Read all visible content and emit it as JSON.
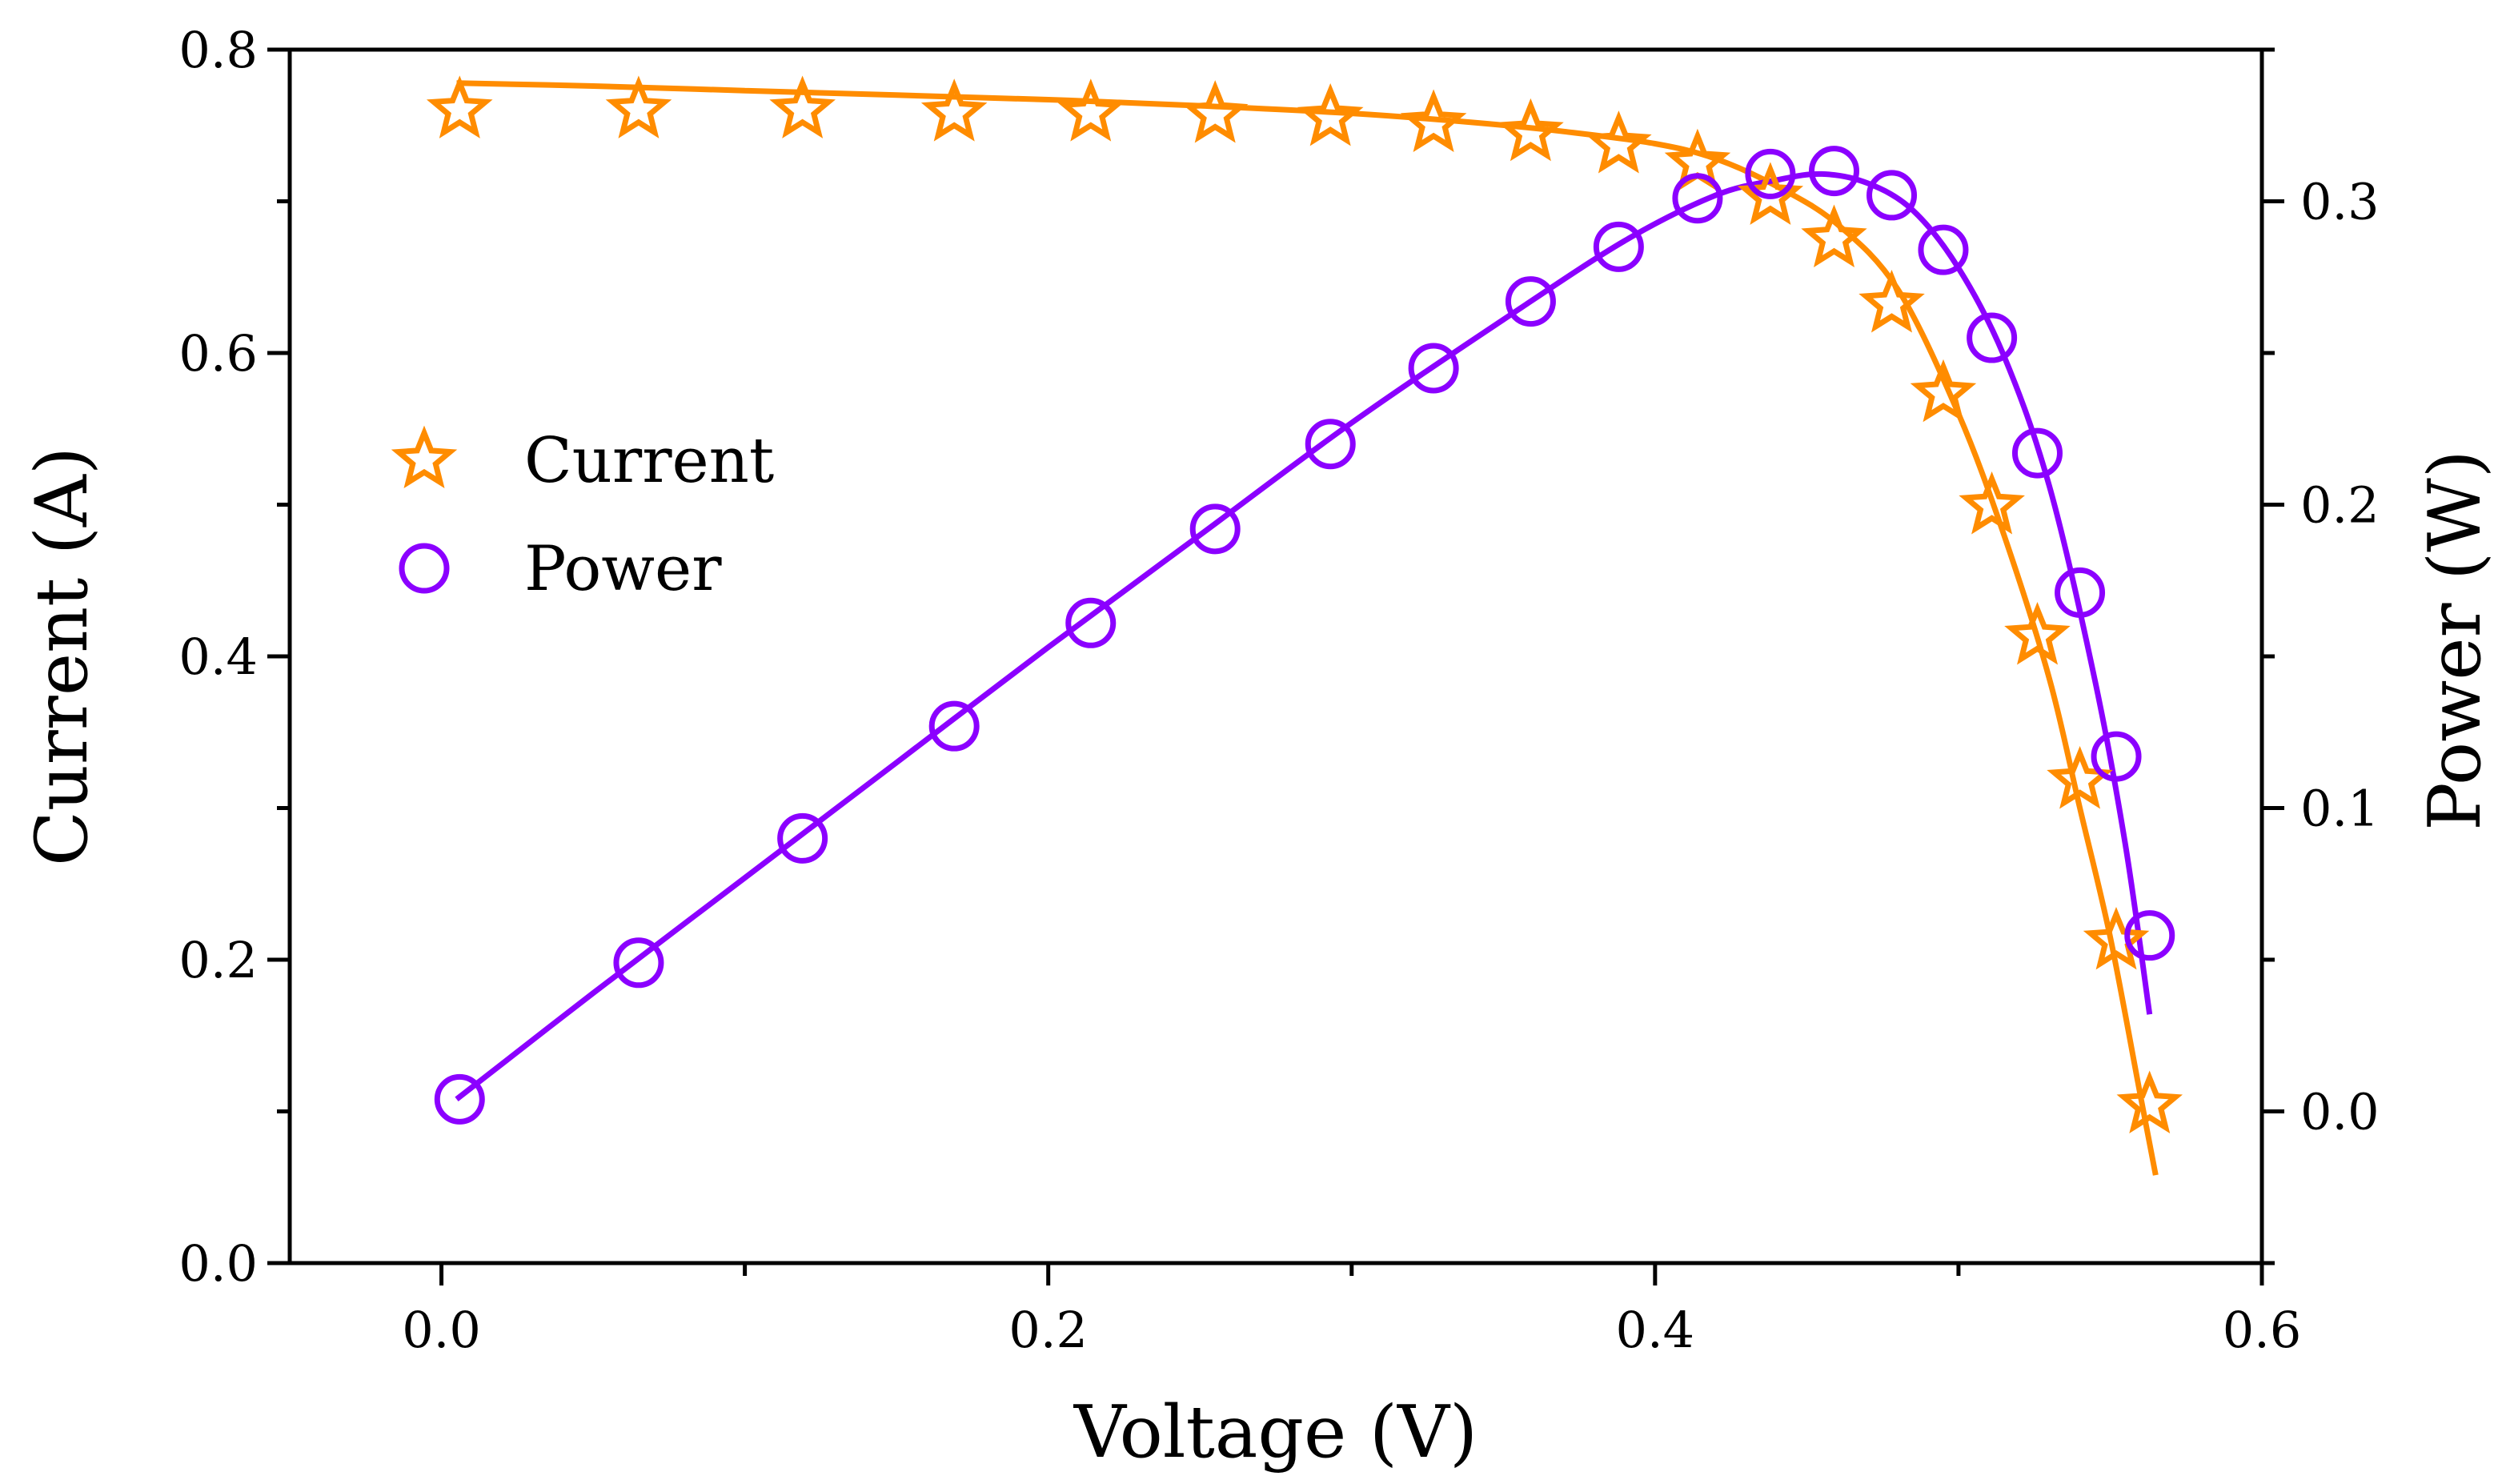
{
  "chart_data": {
    "type": "line+scatter",
    "x_axis": {
      "label": "Voltage (V)",
      "range": [
        -0.05,
        0.6
      ],
      "major_ticks": [
        0.0,
        0.2,
        0.4,
        0.6
      ],
      "minor_ticks": [
        0.1,
        0.3,
        0.5
      ],
      "tick_labels": [
        "0.0",
        "0.2",
        "0.4",
        "0.6"
      ]
    },
    "y_left_axis": {
      "label": "Current (A)",
      "range": [
        0.0,
        0.8
      ],
      "major_ticks": [
        0.0,
        0.2,
        0.4,
        0.6,
        0.8
      ],
      "minor_ticks": [
        0.1,
        0.3,
        0.5,
        0.7
      ],
      "tick_labels": [
        "0.0",
        "0.2",
        "0.4",
        "0.6",
        "0.8"
      ]
    },
    "y_right_axis": {
      "label": "Power (W)",
      "range": [
        -0.05,
        0.35
      ],
      "major_ticks": [
        0.0,
        0.1,
        0.2,
        0.3
      ],
      "minor_ticks": [
        -0.05,
        0.05,
        0.15,
        0.25,
        0.35
      ],
      "tick_labels": [
        "0.0",
        "0.1",
        "0.2",
        "0.3"
      ]
    },
    "series": [
      {
        "name": "Current",
        "axis": "left",
        "marker": "star",
        "color": "#FF8C00",
        "x": [
          0.006,
          0.065,
          0.119,
          0.169,
          0.214,
          0.255,
          0.293,
          0.327,
          0.359,
          0.388,
          0.414,
          0.438,
          0.459,
          0.478,
          0.495,
          0.511,
          0.526,
          0.54,
          0.552,
          0.563
        ],
        "y": [
          0.76,
          0.76,
          0.76,
          0.758,
          0.758,
          0.757,
          0.755,
          0.751,
          0.745,
          0.737,
          0.725,
          0.703,
          0.675,
          0.632,
          0.573,
          0.499,
          0.413,
          0.318,
          0.212,
          0.104
        ],
        "fit": {
          "x": [
            0.005,
            0.05,
            0.1,
            0.15,
            0.2,
            0.25,
            0.3,
            0.34,
            0.37,
            0.4,
            0.42,
            0.44,
            0.46,
            0.48,
            0.5,
            0.515,
            0.53,
            0.54,
            0.55,
            0.56,
            0.565
          ],
          "y": [
            0.778,
            0.776,
            0.773,
            0.77,
            0.767,
            0.763,
            0.758,
            0.752,
            0.746,
            0.738,
            0.728,
            0.71,
            0.685,
            0.642,
            0.56,
            0.48,
            0.385,
            0.3,
            0.215,
            0.11,
            0.058
          ]
        }
      },
      {
        "name": "Power",
        "axis": "right",
        "marker": "circle",
        "color": "#8B00FF",
        "x": [
          0.006,
          0.065,
          0.119,
          0.169,
          0.214,
          0.255,
          0.293,
          0.327,
          0.359,
          0.388,
          0.414,
          0.438,
          0.459,
          0.478,
          0.495,
          0.511,
          0.526,
          0.54,
          0.552,
          0.563
        ],
        "y": [
          0.004,
          0.049,
          0.09,
          0.127,
          0.161,
          0.192,
          0.22,
          0.245,
          0.267,
          0.285,
          0.301,
          0.309,
          0.31,
          0.302,
          0.284,
          0.255,
          0.217,
          0.171,
          0.117,
          0.058
        ],
        "fit": {
          "x": [
            0.005,
            0.05,
            0.1,
            0.15,
            0.2,
            0.25,
            0.3,
            0.35,
            0.39,
            0.42,
            0.44,
            0.455,
            0.47,
            0.485,
            0.5,
            0.515,
            0.53,
            0.545,
            0.555,
            0.563
          ],
          "y": [
            0.004,
            0.039,
            0.077,
            0.115,
            0.153,
            0.19,
            0.227,
            0.261,
            0.287,
            0.302,
            0.307,
            0.309,
            0.306,
            0.297,
            0.278,
            0.249,
            0.206,
            0.142,
            0.088,
            0.032
          ]
        }
      }
    ],
    "legend": {
      "placement": "middle-left",
      "items": [
        {
          "label": "Current",
          "marker": "star",
          "color": "#FF8C00"
        },
        {
          "label": "Power",
          "marker": "circle",
          "color": "#8B00FF"
        }
      ]
    }
  }
}
